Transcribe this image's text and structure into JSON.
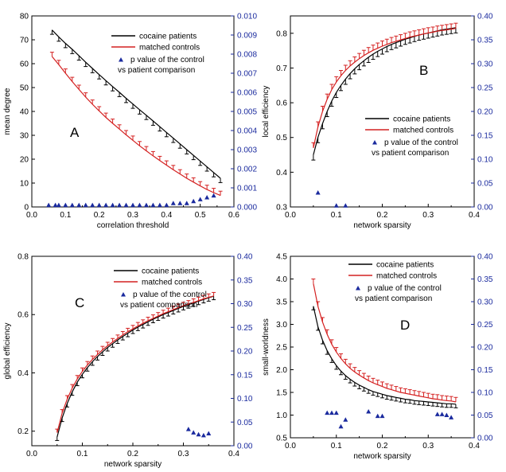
{
  "chart_data": [
    {
      "panel": "A",
      "type": "line",
      "xlabel": "correlation threshold",
      "ylabel": "mean degree",
      "xlim": [
        0.0,
        0.6
      ],
      "ylim": [
        0,
        80
      ],
      "y2lim": [
        0.0,
        0.01
      ],
      "xticks": [
        "0.0",
        "0.1",
        "0.2",
        "0.3",
        "0.4",
        "0.5",
        "0.6"
      ],
      "yticks": [
        "0",
        "10",
        "20",
        "30",
        "40",
        "50",
        "60",
        "70",
        "80"
      ],
      "y2ticks": [
        "0.000",
        "0.001",
        "0.002",
        "0.003",
        "0.004",
        "0.005",
        "0.006",
        "0.007",
        "0.008",
        "0.009",
        "0.010"
      ],
      "legend": [
        "cocaine patients",
        "matched controls",
        "p value of the control",
        "vs patient comparison"
      ],
      "x": [
        0.06,
        0.08,
        0.1,
        0.12,
        0.14,
        0.16,
        0.18,
        0.2,
        0.22,
        0.24,
        0.26,
        0.28,
        0.3,
        0.32,
        0.34,
        0.36,
        0.38,
        0.4,
        0.42,
        0.44,
        0.46,
        0.48,
        0.5,
        0.52,
        0.54,
        0.56
      ],
      "series": [
        {
          "name": "cocaine patients",
          "color": "#000000",
          "values": [
            74.1,
            71.2,
            68.5,
            66.0,
            63.3,
            60.6,
            58.0,
            55.4,
            52.9,
            50.4,
            48.0,
            45.5,
            43.1,
            40.7,
            38.4,
            36.0,
            33.6,
            31.2,
            28.8,
            26.4,
            24.0,
            21.6,
            19.2,
            16.8,
            14.4,
            12.0
          ],
          "error": 1.8
        },
        {
          "name": "matched controls",
          "color": "#d42020",
          "values": [
            63.0,
            59.6,
            56.0,
            52.5,
            49.2,
            46.0,
            43.0,
            40.2,
            37.5,
            35.0,
            32.6,
            30.2,
            27.9,
            25.6,
            23.5,
            21.4,
            19.4,
            17.5,
            15.6,
            13.8,
            12.0,
            10.4,
            8.8,
            7.3,
            6.0,
            4.8
          ],
          "error": 1.8
        },
        {
          "name": "p value of the control vs patient comparison",
          "color": "#1a2a9e",
          "axis": "right",
          "x": [
            0.05,
            0.07,
            0.08,
            0.1,
            0.12,
            0.14,
            0.16,
            0.18,
            0.2,
            0.22,
            0.24,
            0.26,
            0.28,
            0.3,
            0.32,
            0.34,
            0.36,
            0.38,
            0.4,
            0.42,
            0.44,
            0.46,
            0.48,
            0.5,
            0.52,
            0.54
          ],
          "values": [
            0.0001,
            0.0001,
            0.0001,
            0.0001,
            0.0001,
            0.0001,
            0.0001,
            0.0001,
            0.0001,
            0.0001,
            0.0001,
            0.0001,
            0.0001,
            0.0001,
            0.0001,
            0.0001,
            0.0001,
            0.0001,
            0.0001,
            0.0002,
            0.0002,
            0.0002,
            0.0003,
            0.0004,
            0.0005,
            0.0006
          ]
        }
      ]
    },
    {
      "panel": "B",
      "type": "line",
      "xlabel": "network sparsity",
      "ylabel": "local efficiency",
      "xlim": [
        0.0,
        0.4
      ],
      "ylim": [
        0.3,
        0.85
      ],
      "y2lim": [
        0.0,
        0.4
      ],
      "xticks": [
        "0.0",
        "0.1",
        "0.2",
        "0.3",
        "0.4"
      ],
      "yticks": [
        "0.3",
        "0.4",
        "0.5",
        "0.6",
        "0.7",
        "0.8"
      ],
      "y2ticks": [
        "0.00",
        "0.05",
        "0.10",
        "0.15",
        "0.20",
        "0.25",
        "0.30",
        "0.35",
        "0.40"
      ],
      "legend": [
        "cocaine patients",
        "matched controls",
        "p value of the control",
        "vs patient comparison"
      ],
      "x": [
        0.05,
        0.06,
        0.07,
        0.08,
        0.09,
        0.1,
        0.11,
        0.12,
        0.13,
        0.14,
        0.15,
        0.16,
        0.17,
        0.18,
        0.19,
        0.2,
        0.21,
        0.22,
        0.23,
        0.24,
        0.25,
        0.26,
        0.27,
        0.28,
        0.29,
        0.3,
        0.31,
        0.32,
        0.33,
        0.34,
        0.35,
        0.36
      ],
      "series": [
        {
          "name": "cocaine patients",
          "color": "#000000",
          "values": [
            0.45,
            0.5,
            0.54,
            0.575,
            0.605,
            0.63,
            0.65,
            0.668,
            0.684,
            0.698,
            0.71,
            0.721,
            0.731,
            0.74,
            0.748,
            0.755,
            0.762,
            0.768,
            0.773,
            0.778,
            0.783,
            0.787,
            0.791,
            0.795,
            0.798,
            0.801,
            0.804,
            0.807,
            0.81,
            0.812,
            0.814,
            0.816
          ],
          "error": 0.015
        },
        {
          "name": "matched controls",
          "color": "#d42020",
          "values": [
            0.47,
            0.53,
            0.575,
            0.61,
            0.638,
            0.66,
            0.678,
            0.693,
            0.706,
            0.717,
            0.727,
            0.736,
            0.744,
            0.751,
            0.757,
            0.763,
            0.768,
            0.773,
            0.777,
            0.781,
            0.785,
            0.789,
            0.792,
            0.795,
            0.798,
            0.801,
            0.803,
            0.806,
            0.808,
            0.81,
            0.812,
            0.814
          ],
          "error": 0.015
        },
        {
          "name": "p value of the control vs patient comparison",
          "color": "#1a2a9e",
          "axis": "right",
          "x": [
            0.06,
            0.1,
            0.12
          ],
          "values": [
            0.03,
            0.003,
            0.003
          ]
        }
      ]
    },
    {
      "panel": "C",
      "type": "line",
      "xlabel": "network sparsity",
      "ylabel": "global efficiency",
      "xlim": [
        0.0,
        0.4
      ],
      "ylim": [
        0.15,
        0.8
      ],
      "y2lim": [
        0.0,
        0.4
      ],
      "xticks": [
        "0.0",
        "0.1",
        "0.2",
        "0.3",
        "0.4"
      ],
      "yticks": [
        "0.2",
        "0.4",
        "0.6",
        "0.8"
      ],
      "y2ticks": [
        "0.00",
        "0.05",
        "0.10",
        "0.15",
        "0.20",
        "0.25",
        "0.30",
        "0.35",
        "0.40"
      ],
      "legend": [
        "cocaine patients",
        "matched controls",
        "p value of the control",
        "vs patient comparison"
      ],
      "x": [
        0.05,
        0.06,
        0.07,
        0.08,
        0.09,
        0.1,
        0.11,
        0.12,
        0.13,
        0.14,
        0.15,
        0.16,
        0.17,
        0.18,
        0.19,
        0.2,
        0.21,
        0.22,
        0.23,
        0.24,
        0.25,
        0.26,
        0.27,
        0.28,
        0.29,
        0.3,
        0.31,
        0.32,
        0.33,
        0.34,
        0.35,
        0.36
      ],
      "series": [
        {
          "name": "cocaine patients",
          "color": "#000000",
          "values": [
            0.18,
            0.245,
            0.295,
            0.335,
            0.368,
            0.395,
            0.418,
            0.438,
            0.456,
            0.472,
            0.487,
            0.5,
            0.513,
            0.525,
            0.536,
            0.547,
            0.557,
            0.566,
            0.575,
            0.584,
            0.592,
            0.6,
            0.607,
            0.614,
            0.621,
            0.628,
            0.634,
            0.64,
            0.646,
            0.652,
            0.658,
            0.663
          ],
          "error": 0.012
        },
        {
          "name": "matched controls",
          "color": "#d42020",
          "values": [
            0.195,
            0.262,
            0.31,
            0.348,
            0.379,
            0.405,
            0.427,
            0.446,
            0.463,
            0.479,
            0.493,
            0.506,
            0.518,
            0.53,
            0.541,
            0.551,
            0.561,
            0.57,
            0.579,
            0.587,
            0.595,
            0.603,
            0.61,
            0.617,
            0.624,
            0.63,
            0.636,
            0.642,
            0.648,
            0.654,
            0.659,
            0.664
          ],
          "error": 0.012
        },
        {
          "name": "p value of the control vs patient comparison",
          "color": "#1a2a9e",
          "axis": "right",
          "x": [
            0.31,
            0.32,
            0.33,
            0.34,
            0.35
          ],
          "values": [
            0.035,
            0.028,
            0.024,
            0.022,
            0.026
          ]
        }
      ]
    },
    {
      "panel": "D",
      "type": "line",
      "xlabel": "network sparsity",
      "ylabel": "small-worldness",
      "xlim": [
        0.0,
        0.4
      ],
      "ylim": [
        0.5,
        4.5
      ],
      "y2lim": [
        0.0,
        0.4
      ],
      "xticks": [
        "0.0",
        "0.1",
        "0.2",
        "0.3",
        "0.4"
      ],
      "yticks": [
        "0.5",
        "1.0",
        "1.5",
        "2.0",
        "2.5",
        "3.0",
        "3.5",
        "4.0",
        "4.5"
      ],
      "y2ticks": [
        "0.00",
        "0.05",
        "0.10",
        "0.15",
        "0.20",
        "0.25",
        "0.30",
        "0.35",
        "0.40"
      ],
      "legend": [
        "cocaine patients",
        "matched controls",
        "p value of the control",
        "vs patient comparison"
      ],
      "x": [
        0.05,
        0.06,
        0.07,
        0.08,
        0.09,
        0.1,
        0.11,
        0.12,
        0.13,
        0.14,
        0.15,
        0.16,
        0.17,
        0.18,
        0.19,
        0.2,
        0.21,
        0.22,
        0.23,
        0.24,
        0.25,
        0.26,
        0.27,
        0.28,
        0.29,
        0.3,
        0.31,
        0.32,
        0.33,
        0.34,
        0.35,
        0.36
      ],
      "series": [
        {
          "name": "cocaine patients",
          "color": "#000000",
          "values": [
            3.4,
            2.95,
            2.65,
            2.42,
            2.24,
            2.09,
            1.97,
            1.87,
            1.79,
            1.72,
            1.66,
            1.61,
            1.56,
            1.52,
            1.49,
            1.46,
            1.43,
            1.41,
            1.39,
            1.37,
            1.35,
            1.34,
            1.32,
            1.31,
            1.3,
            1.29,
            1.28,
            1.27,
            1.26,
            1.25,
            1.25,
            1.24
          ],
          "error": 0.08
        },
        {
          "name": "matched controls",
          "color": "#d42020",
          "values": [
            3.9,
            3.4,
            3.05,
            2.78,
            2.56,
            2.39,
            2.25,
            2.13,
            2.03,
            1.95,
            1.88,
            1.82,
            1.76,
            1.71,
            1.67,
            1.63,
            1.59,
            1.56,
            1.53,
            1.5,
            1.48,
            1.46,
            1.44,
            1.42,
            1.4,
            1.38,
            1.36,
            1.35,
            1.33,
            1.32,
            1.31,
            1.29
          ],
          "error": 0.1
        },
        {
          "name": "p value of the control vs patient comparison",
          "color": "#1a2a9e",
          "axis": "right",
          "x": [
            0.08,
            0.09,
            0.1,
            0.11,
            0.12,
            0.17,
            0.19,
            0.2,
            0.32,
            0.33,
            0.34,
            0.35
          ],
          "values": [
            0.055,
            0.055,
            0.055,
            0.025,
            0.04,
            0.058,
            0.048,
            0.048,
            0.052,
            0.052,
            0.05,
            0.045
          ]
        }
      ]
    }
  ]
}
